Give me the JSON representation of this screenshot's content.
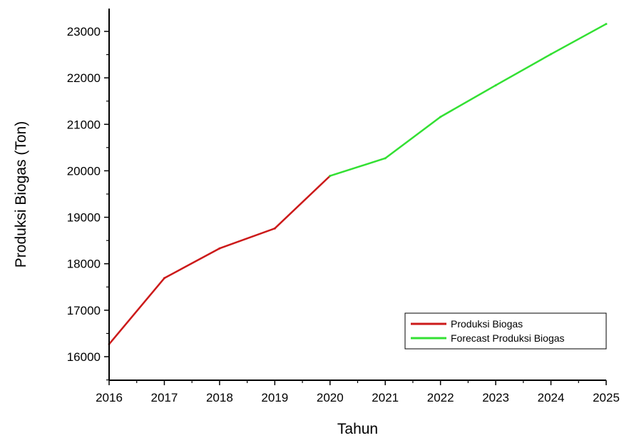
{
  "chart_data": {
    "type": "line",
    "xlabel": "Tahun",
    "ylabel": "Produksi Biogas (Ton)",
    "xlim": [
      2016,
      2025
    ],
    "ylim": [
      15500,
      23500
    ],
    "xticks": [
      2016,
      2017,
      2018,
      2019,
      2020,
      2021,
      2022,
      2023,
      2024,
      2025
    ],
    "yticks": [
      16000,
      17000,
      18000,
      19000,
      20000,
      21000,
      22000,
      23000
    ],
    "grid": false,
    "legend_position": "bottom-right",
    "series": [
      {
        "name": "Produksi Biogas",
        "color": "#cc1a1a",
        "x": [
          2016,
          2017,
          2018,
          2019,
          2020
        ],
        "values": [
          16270,
          17690,
          18330,
          18760,
          19890
        ]
      },
      {
        "name": "Forecast Produksi Biogas",
        "color": "#33e033",
        "x": [
          2020,
          2021,
          2022,
          2023,
          2024,
          2025
        ],
        "values": [
          19890,
          20270,
          21160,
          21840,
          22510,
          23160
        ]
      }
    ]
  }
}
